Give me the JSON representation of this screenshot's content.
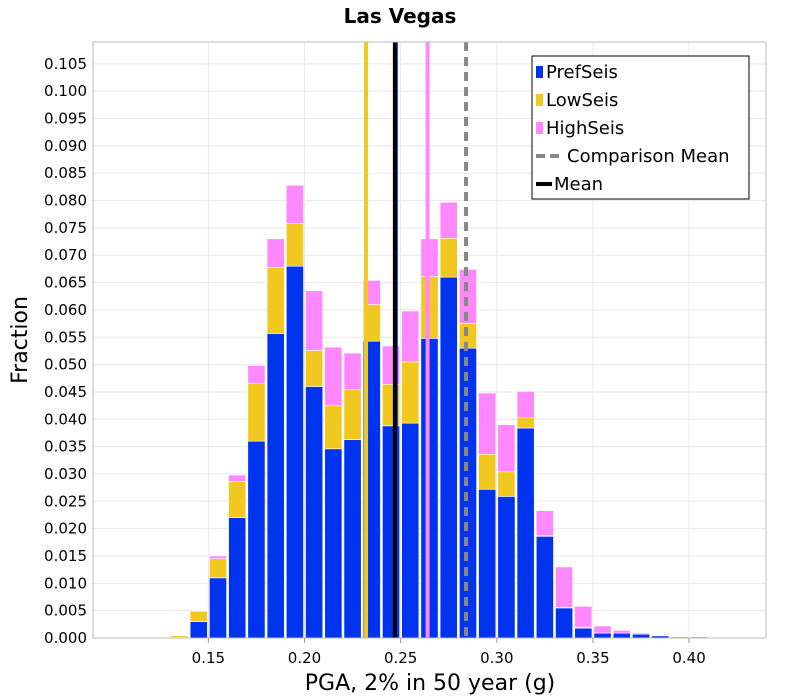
{
  "chart_data": {
    "type": "bar",
    "stacked": true,
    "title": "Las Vegas",
    "xlabel": "PGA, 2% in 50 year (g)",
    "ylabel": "Fraction",
    "xlim": [
      0.09,
      0.44
    ],
    "ylim": [
      0.0,
      0.109
    ],
    "bin_width": 0.01,
    "grid": true,
    "legend_position": "top-right",
    "x_ticks": [
      "0.15",
      "0.20",
      "0.25",
      "0.30",
      "0.35",
      "0.40"
    ],
    "y_ticks": [
      "0.000",
      "0.005",
      "0.010",
      "0.015",
      "0.020",
      "0.025",
      "0.030",
      "0.035",
      "0.040",
      "0.045",
      "0.050",
      "0.055",
      "0.060",
      "0.065",
      "0.070",
      "0.075",
      "0.080",
      "0.085",
      "0.090",
      "0.095",
      "0.100",
      "0.105"
    ],
    "bin_centers": [
      0.135,
      0.145,
      0.155,
      0.165,
      0.175,
      0.185,
      0.195,
      0.205,
      0.215,
      0.225,
      0.235,
      0.245,
      0.255,
      0.265,
      0.275,
      0.285,
      0.295,
      0.305,
      0.315,
      0.325,
      0.335,
      0.345,
      0.355,
      0.365,
      0.375,
      0.385,
      0.395,
      0.405,
      0.415,
      0.425
    ],
    "series": [
      {
        "name": "PrefSeis",
        "color": "#0033ee",
        "values": [
          0.0001,
          0.003,
          0.011,
          0.022,
          0.036,
          0.0557,
          0.068,
          0.046,
          0.0346,
          0.0363,
          0.0543,
          0.0388,
          0.0393,
          0.0548,
          0.066,
          0.053,
          0.0272,
          0.0259,
          0.0384,
          0.0186,
          0.0055,
          0.0018,
          0.0009,
          0.0009,
          0.0007,
          0.0004,
          0.0002,
          0.0002,
          0.0001,
          0.0001
        ]
      },
      {
        "name": "LowSeis",
        "color": "#f0c820",
        "values": [
          0.0003,
          0.0019,
          0.0035,
          0.0066,
          0.0106,
          0.0121,
          0.0078,
          0.0066,
          0.0079,
          0.0091,
          0.0067,
          0.0076,
          0.0112,
          0.0113,
          0.0071,
          0.0045,
          0.0064,
          0.0045,
          0.0019,
          0.0001,
          0.0001,
          0.0002,
          0.0,
          0.0,
          0.0,
          0.0,
          0.0,
          0.0,
          0.0,
          0.0
        ]
      },
      {
        "name": "HighSeis",
        "color": "#ff88ff",
        "values": [
          0.0,
          0.0001,
          0.0005,
          0.0012,
          0.0032,
          0.0052,
          0.007,
          0.0109,
          0.0107,
          0.0067,
          0.0044,
          0.007,
          0.0093,
          0.0069,
          0.0066,
          0.0099,
          0.0112,
          0.0086,
          0.0048,
          0.0046,
          0.0074,
          0.0038,
          0.0013,
          0.0005,
          0.0002,
          0.0001,
          0.0001,
          0.0001,
          0.0001,
          0.0
        ]
      }
    ],
    "vertical_lines": [
      {
        "name": "Comparison Mean",
        "x": 0.284,
        "color": "#888888",
        "dashed": true
      },
      {
        "name": "Mean",
        "x": 0.247,
        "color": "#000000",
        "dashed": false
      }
    ],
    "unlabeled_lines": [
      {
        "x": 0.232,
        "color": "#f0c820"
      },
      {
        "x": 0.264,
        "color": "#ff88ff"
      },
      {
        "x": 0.2475,
        "color": "#0033ee"
      }
    ]
  }
}
